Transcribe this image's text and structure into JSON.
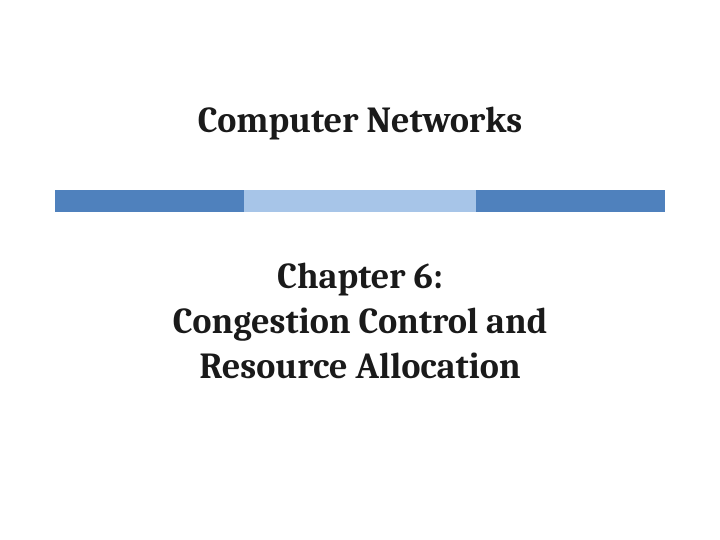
{
  "slide": {
    "title": "Computer Networks",
    "subtitle_line1": "Chapter 6:",
    "subtitle_line2": "Congestion Control and",
    "subtitle_line3": "Resource Allocation",
    "divider": {
      "colors": {
        "segment1": "#4f81bd",
        "segment2": "#a7c5e8",
        "segment3": "#4f81bd"
      }
    },
    "background_color": "#ffffff",
    "text_color": "#1a1a1a",
    "title_fontsize": 36,
    "subtitle_fontsize": 36
  }
}
